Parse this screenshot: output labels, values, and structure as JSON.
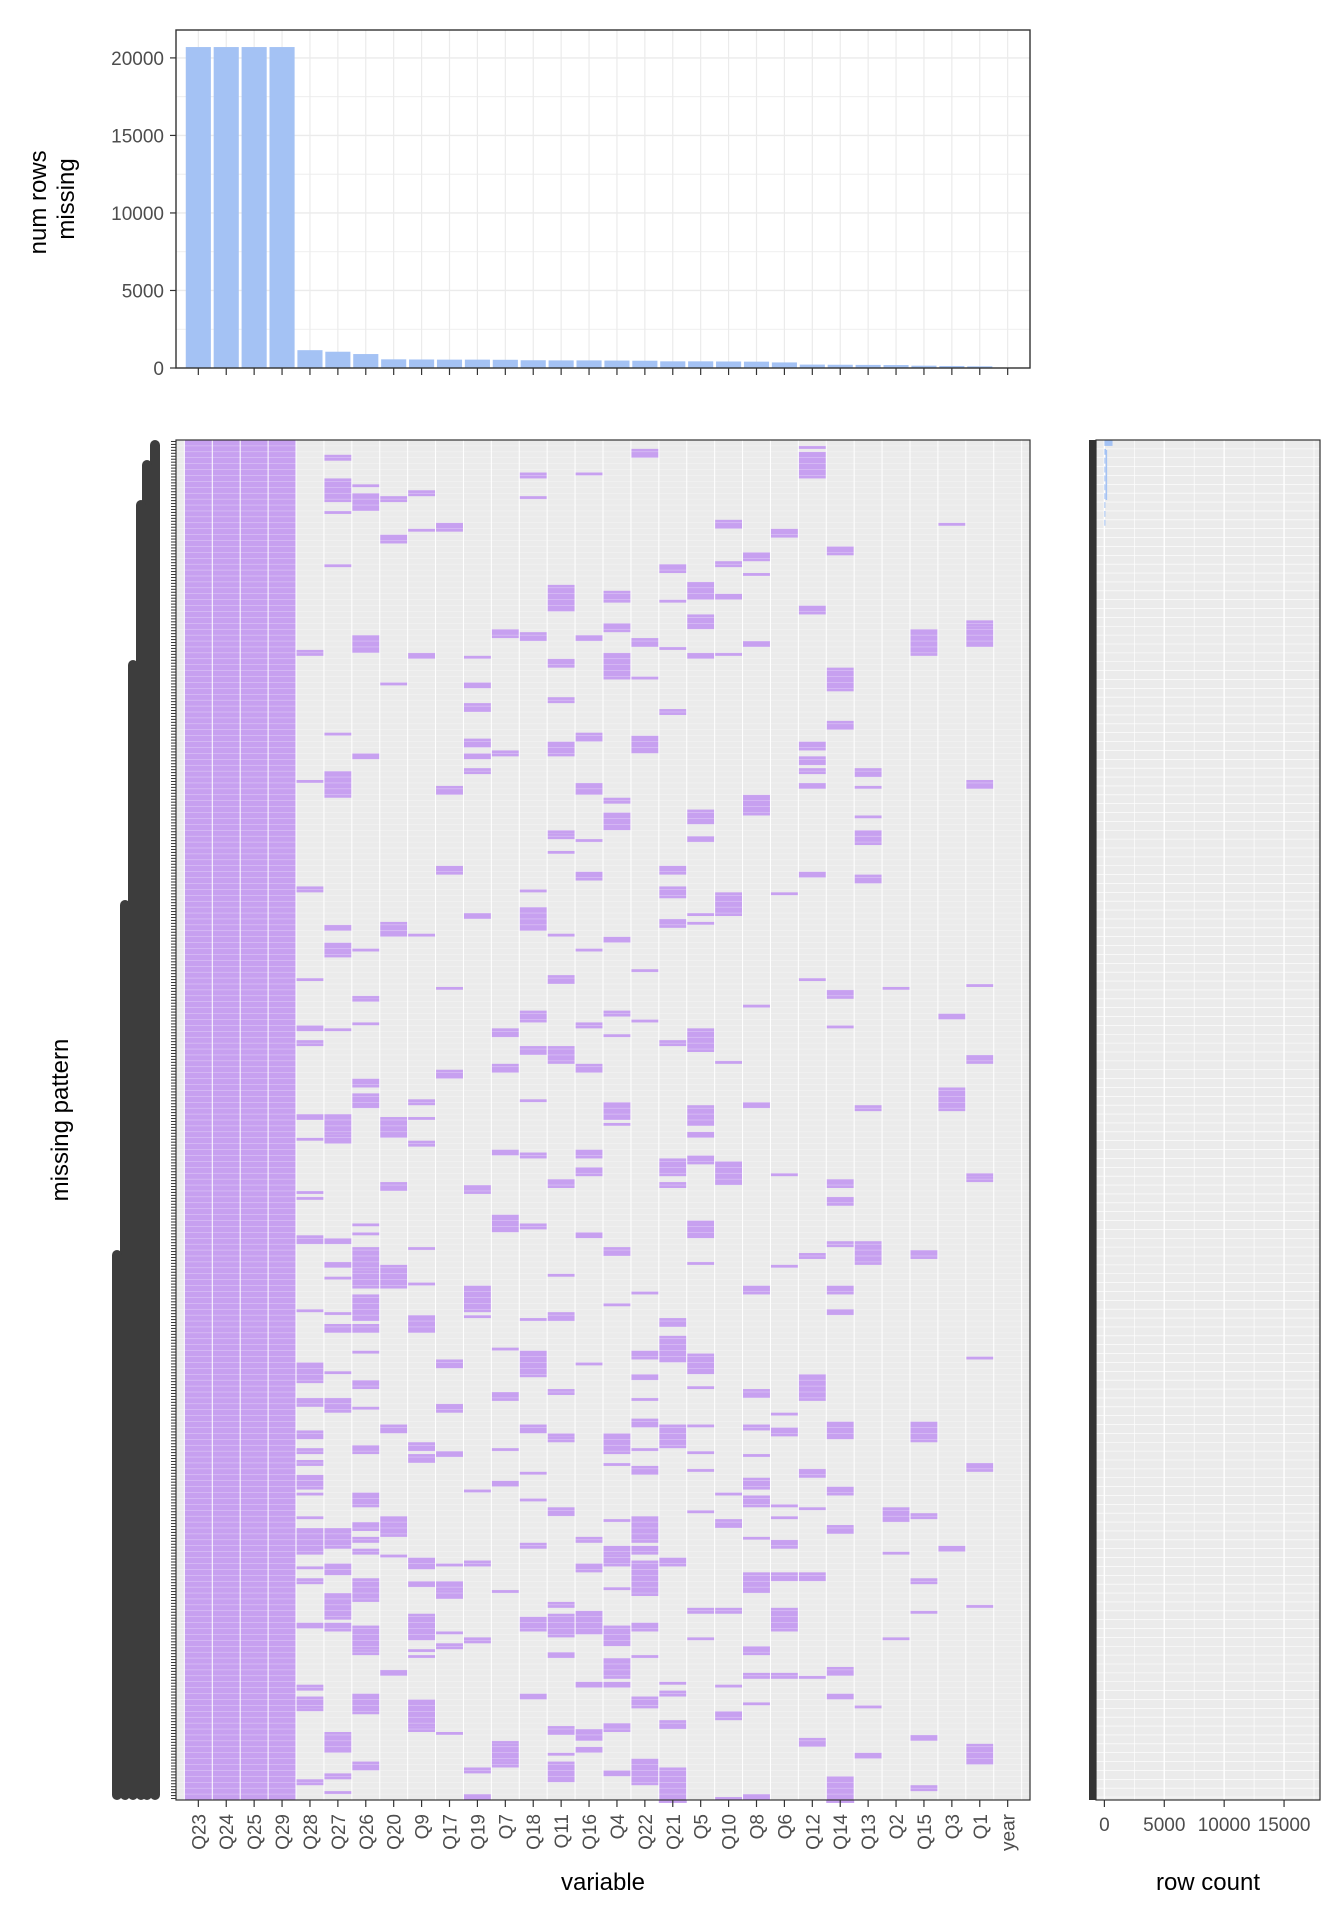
{
  "chart_data": [
    {
      "type": "bar",
      "ylabel": "num rows\nmissing",
      "ylim": [
        0,
        21800
      ],
      "yticks": [
        0,
        5000,
        10000,
        15000,
        20000
      ],
      "grid": true,
      "categories": [
        "Q23",
        "Q24",
        "Q25",
        "Q29",
        "Q28",
        "Q27",
        "Q26",
        "Q20",
        "Q9",
        "Q17",
        "Q19",
        "Q7",
        "Q18",
        "Q11",
        "Q16",
        "Q4",
        "Q22",
        "Q21",
        "Q5",
        "Q10",
        "Q8",
        "Q6",
        "Q12",
        "Q14",
        "Q13",
        "Q2",
        "Q15",
        "Q3",
        "Q1",
        "year"
      ],
      "values": [
        20700,
        20700,
        20700,
        20700,
        1150,
        1050,
        900,
        560,
        550,
        540,
        540,
        530,
        500,
        490,
        490,
        480,
        470,
        430,
        430,
        420,
        410,
        360,
        220,
        210,
        200,
        190,
        150,
        130,
        110,
        0
      ],
      "color": "#a4c2f4"
    },
    {
      "type": "heatmap",
      "xlabel": "variable",
      "ylabel": "missing pattern",
      "categories": [
        "Q23",
        "Q24",
        "Q25",
        "Q29",
        "Q28",
        "Q27",
        "Q26",
        "Q20",
        "Q9",
        "Q17",
        "Q19",
        "Q7",
        "Q18",
        "Q11",
        "Q16",
        "Q4",
        "Q22",
        "Q21",
        "Q5",
        "Q10",
        "Q8",
        "Q6",
        "Q12",
        "Q14",
        "Q13",
        "Q2",
        "Q15",
        "Q3",
        "Q1",
        "year"
      ],
      "rows": 460,
      "missing_rate": [
        1,
        1,
        1,
        1,
        0.26,
        0.25,
        0.24,
        0.15,
        0.19,
        0.18,
        0.19,
        0.19,
        0.18,
        0.17,
        0.17,
        0.15,
        0.2,
        0.2,
        0.16,
        0.14,
        0.14,
        0.12,
        0.1,
        0.09,
        0.09,
        0.07,
        0.07,
        0.05,
        0.06,
        0
      ],
      "missing_color": "#c7a0f0",
      "present_color": "#ebebeb"
    },
    {
      "type": "bar",
      "orientation": "horizontal",
      "xlabel": "row count",
      "xlim": [
        -700,
        18000
      ],
      "xticks": [
        0,
        5000,
        10000,
        15000
      ],
      "xtick_labels": [
        "0",
        "5000",
        "10000",
        "15000"
      ],
      "values_top": [
        680,
        140,
        70,
        40,
        30,
        20,
        15,
        10,
        10,
        8
      ],
      "color": "#a4c2f4"
    }
  ]
}
